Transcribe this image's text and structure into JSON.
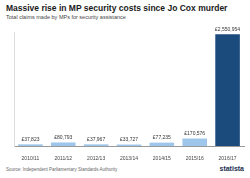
{
  "chart_data": {
    "type": "bar",
    "title": "Massive rise in MP security costs since Jo Cox murder",
    "subtitle": "Total claims made by MPs for security assistance",
    "categories": [
      "2010/11",
      "2011/12",
      "2012/13",
      "2013/14",
      "2014/15",
      "2015/16",
      "2016/17"
    ],
    "values": [
      37823,
      80793,
      37967,
      33727,
      77235,
      170576,
      2550954
    ],
    "value_labels": [
      "£37,823",
      "£80,793",
      "£37,967",
      "£33,727",
      "£77,235",
      "£170,576",
      "£2,550,954"
    ],
    "colors": [
      "#9ec6ea",
      "#9ec6ea",
      "#9ec6ea",
      "#9ec6ea",
      "#9ec6ea",
      "#9ec6ea",
      "#1b4a7c"
    ],
    "ylim": [
      0,
      2600000
    ],
    "grid": false,
    "data_labels": true,
    "tick_labels": "x",
    "source": "Source: Independent Parliamentary Standards Authority",
    "credit": "statista"
  }
}
